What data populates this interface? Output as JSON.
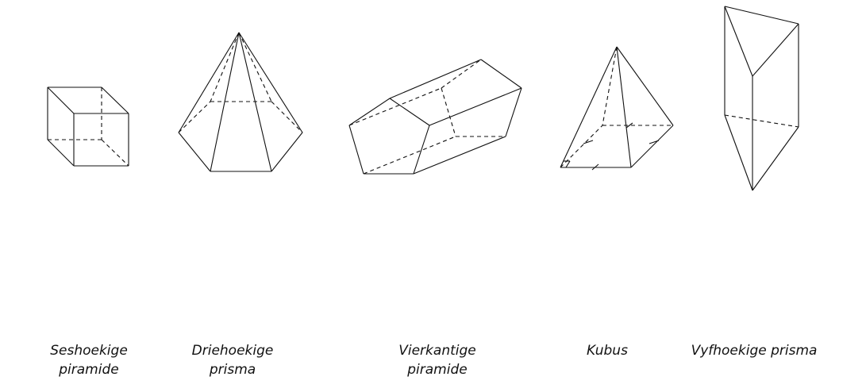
{
  "labels": [
    {
      "line1": "Seshoekige",
      "line2": "piramide"
    },
    {
      "line1": "Driehoekige",
      "line2": "prisma"
    },
    {
      "line1": "Vierkantige",
      "line2": "piramide"
    },
    {
      "line1": "Kubus",
      "line2": ""
    },
    {
      "line1": "Vyfhoekige prisma",
      "line2": ""
    }
  ],
  "colors": {
    "line": "#111111",
    "background": "#ffffff"
  }
}
